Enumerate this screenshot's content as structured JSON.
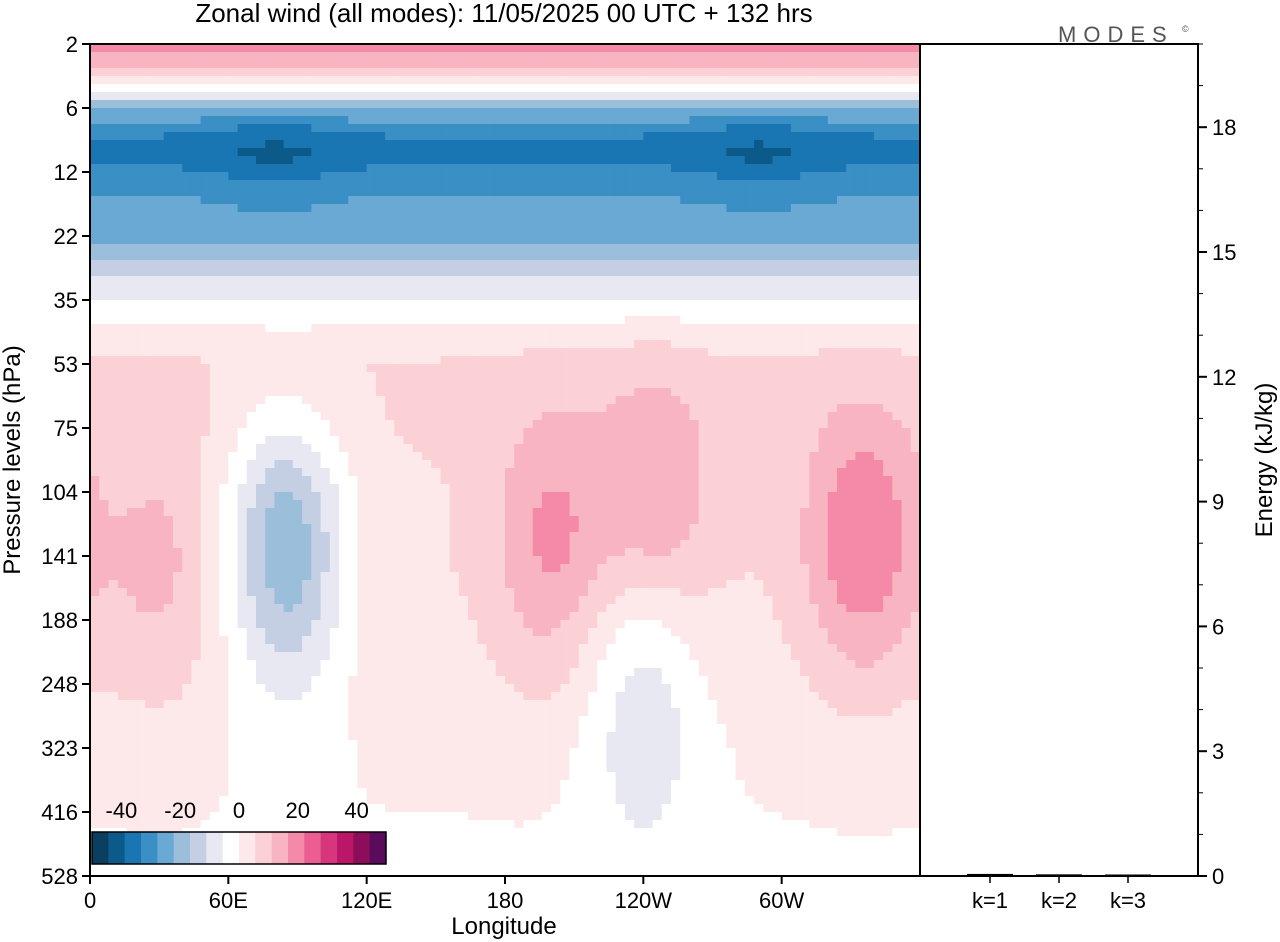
{
  "chart_data": {
    "type": "heatmap",
    "title": "Zonal wind (all modes):  11/05/2025  00 UTC  + 132 hrs",
    "logo": "MODES",
    "xlabel": "Longitude",
    "ylabel": "Pressure levels (hPa)",
    "x_ticks": [
      "0",
      "60E",
      "120E",
      "180",
      "120W",
      "60W"
    ],
    "y_ticks": [
      "2",
      "6",
      "12",
      "22",
      "35",
      "53",
      "75",
      "104",
      "141",
      "188",
      "248",
      "323",
      "416",
      "528"
    ],
    "y_scale": "log",
    "colorbar": {
      "ticks": [
        "-40",
        "-20",
        "0",
        "20",
        "40"
      ],
      "range": [
        -50,
        50
      ],
      "step": 5,
      "colors": [
        "#0b3f62",
        "#0b5a8a",
        "#1976b2",
        "#3a8fc4",
        "#69a9d3",
        "#9bbedb",
        "#c5cfe4",
        "#e7e8f2",
        "#ffffff",
        "#fde9e9",
        "#fbd1d5",
        "#f8b4c0",
        "#f48aa7",
        "#ea5e94",
        "#d8357f",
        "#bb1668",
        "#8c0e5a",
        "#5b0b5c"
      ]
    },
    "energy_panel": {
      "ylabel": "Energy (kJ/kg)",
      "ylim": [
        0,
        20
      ],
      "ticks": [
        "0",
        "3",
        "6",
        "9",
        "12",
        "15",
        "18"
      ],
      "categories": [
        "k=1",
        "k=2",
        "k=3"
      ],
      "values": [
        0.05,
        0.04,
        0.03
      ]
    },
    "wind_bands": [
      {
        "p": 2,
        "u": 20
      },
      {
        "p": 3,
        "u": 10
      },
      {
        "p": 4,
        "u": 2
      },
      {
        "p": 5,
        "u": -8
      },
      {
        "p": 6,
        "u": -22
      },
      {
        "p": 8,
        "u": -33
      },
      {
        "p": 10,
        "u": -36
      },
      {
        "p": 12,
        "u": -32
      },
      {
        "p": 16,
        "u": -27
      },
      {
        "p": 22,
        "u": -24
      },
      {
        "p": 27,
        "u": -14
      },
      {
        "p": 35,
        "u": -5
      },
      {
        "p": 45,
        "u": 3
      },
      {
        "p": 53,
        "u": 6
      },
      {
        "p": 75,
        "u": 6
      },
      {
        "p": 104,
        "u": 5
      },
      {
        "p": 141,
        "u": 5
      },
      {
        "p": 188,
        "u": 4
      },
      {
        "p": 248,
        "u": 3
      },
      {
        "p": 323,
        "u": 1
      },
      {
        "p": 416,
        "u": 0
      },
      {
        "p": 528,
        "u": -1
      }
    ],
    "wind_features": [
      {
        "lon": 85,
        "p": 135,
        "u": -25
      },
      {
        "lon": 80,
        "p": 9,
        "u": -40
      },
      {
        "lon": 290,
        "p": 9,
        "u": -40
      },
      {
        "lon": 200,
        "p": 130,
        "u": 20
      },
      {
        "lon": 245,
        "p": 110,
        "u": 20
      },
      {
        "lon": 335,
        "p": 130,
        "u": 25
      },
      {
        "lon": 240,
        "p": 245,
        "u": -12
      },
      {
        "lon": 30,
        "p": 150,
        "u": 14
      }
    ]
  }
}
